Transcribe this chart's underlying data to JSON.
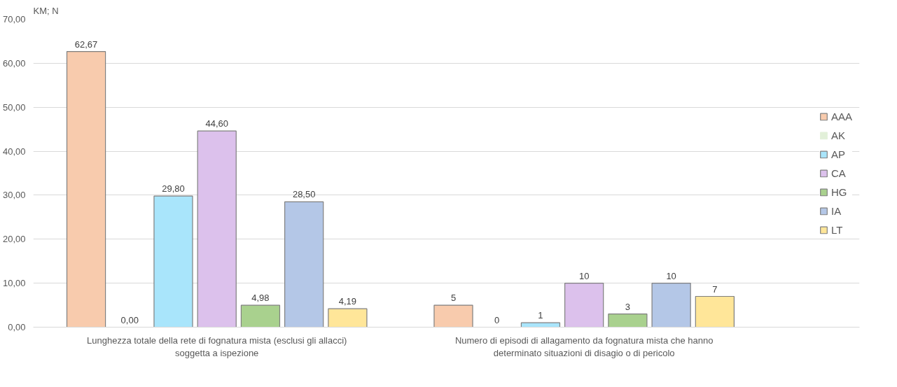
{
  "chart_data": {
    "type": "bar",
    "ylabel": "KM; N",
    "categories": [
      "Lunghezza totale della rete di fognatura mista (esclusi gli allacci) soggetta a ispezione",
      "Numero di episodi di allagamento da fognatura mista che hanno determinato situazioni di disagio o di pericolo"
    ],
    "series": [
      {
        "name": "AAA",
        "color": "#f8cbad",
        "values": [
          62.67,
          5
        ],
        "value_labels": [
          "62,67",
          "5"
        ]
      },
      {
        "name": "AK",
        "color": "#e2f0d9",
        "values": [
          0,
          0
        ],
        "value_labels": [
          "0,00",
          "0"
        ]
      },
      {
        "name": "AP",
        "color": "#a9e5fb",
        "values": [
          29.8,
          1
        ],
        "value_labels": [
          "29,80",
          "1"
        ]
      },
      {
        "name": "CA",
        "color": "#dcc1ec",
        "values": [
          44.6,
          10
        ],
        "value_labels": [
          "44,60",
          "10"
        ]
      },
      {
        "name": "HG",
        "color": "#a9d18e",
        "values": [
          4.98,
          3
        ],
        "value_labels": [
          "4,98",
          "3"
        ]
      },
      {
        "name": "IA",
        "color": "#b4c7e7",
        "values": [
          28.5,
          10
        ],
        "value_labels": [
          "28,50",
          "10"
        ]
      },
      {
        "name": "LT",
        "color": "#ffe699",
        "values": [
          4.19,
          7
        ],
        "value_labels": [
          "4,19",
          "7"
        ]
      }
    ],
    "ylim": [
      0,
      70
    ],
    "yticks": [
      {
        "value": 0,
        "label": "0,00"
      },
      {
        "value": 10,
        "label": "10,00"
      },
      {
        "value": 20,
        "label": "20,00"
      },
      {
        "value": 30,
        "label": "30,00"
      },
      {
        "value": 40,
        "label": "40,00"
      },
      {
        "value": 50,
        "label": "50,00"
      },
      {
        "value": 60,
        "label": "60,00"
      },
      {
        "value": 70,
        "label": "70,00"
      }
    ],
    "grid": "y",
    "legend": "right"
  }
}
